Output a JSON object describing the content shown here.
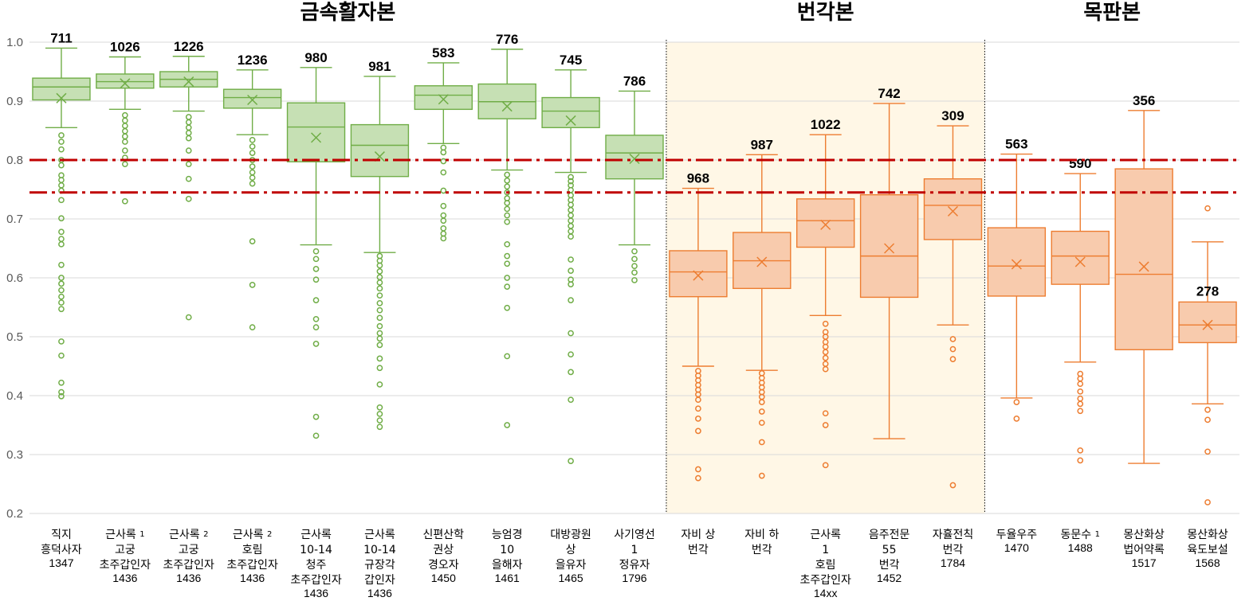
{
  "colors": {
    "green_fill": "#c6e0b4",
    "green_stroke": "#70ad47",
    "orange_fill": "#f8cbad",
    "orange_stroke": "#ed7d31",
    "highlight_bg": "#fff7e6",
    "threshold_line": "#c00000",
    "grid": "#d9d9d9",
    "red_label": "#ff0000"
  },
  "chart_data": {
    "type": "box",
    "ylim": [
      0.2,
      1.0
    ],
    "yticks": [
      "0.2",
      "0.3",
      "0.4",
      "0.5",
      "0.6",
      "0.7",
      "0.8",
      "0.9",
      "1.0"
    ],
    "grid": true,
    "thresholds": [
      0.8,
      0.745
    ],
    "groups": [
      {
        "title": "금속활자본",
        "start": 0,
        "end": 9,
        "highlight": false
      },
      {
        "title": "번각본",
        "start": 10,
        "end": 14,
        "highlight": true
      },
      {
        "title": "목판본",
        "start": 15,
        "end": 18,
        "highlight": false
      }
    ],
    "boxes": [
      {
        "lines": [
          "직지",
          "흥덕사자"
        ],
        "year": "1347",
        "count": "711",
        "color": "green",
        "q1": 0.902,
        "median": 0.924,
        "q3": 0.939,
        "mean": 0.905,
        "whisker_low": 0.855,
        "whisker_high": 0.99,
        "outliers": [
          0.842,
          0.831,
          0.818,
          0.8,
          0.791,
          0.774,
          0.766,
          0.757,
          0.748,
          0.732,
          0.701,
          0.678,
          0.666,
          0.657,
          0.622,
          0.6,
          0.59,
          0.579,
          0.568,
          0.558,
          0.547,
          0.492,
          0.468,
          0.422,
          0.406,
          0.399
        ]
      },
      {
        "lines": [
          "근사록¹",
          "고궁",
          "초주갑인자"
        ],
        "year": "1436",
        "count": "1026",
        "color": "green",
        "q1": 0.922,
        "median": 0.933,
        "q3": 0.946,
        "mean": 0.93,
        "whisker_low": 0.886,
        "whisker_high": 0.975,
        "outliers": [
          0.876,
          0.867,
          0.858,
          0.849,
          0.84,
          0.831,
          0.816,
          0.804,
          0.793,
          0.73
        ]
      },
      {
        "lines": [
          "근사록²",
          "고궁",
          "초주갑인자"
        ],
        "year": "1436",
        "count": "1226",
        "color": "green",
        "q1": 0.924,
        "median": 0.937,
        "q3": 0.95,
        "mean": 0.933,
        "whisker_low": 0.883,
        "whisker_high": 0.976,
        "outliers": [
          0.873,
          0.864,
          0.855,
          0.846,
          0.837,
          0.816,
          0.793,
          0.768,
          0.734,
          0.533
        ]
      },
      {
        "lines": [
          "근사록²",
          "호림",
          "초주갑인자"
        ],
        "year": "1436",
        "count": "1236",
        "color": "green",
        "q1": 0.888,
        "median": 0.906,
        "q3": 0.92,
        "mean": 0.902,
        "whisker_low": 0.843,
        "whisker_high": 0.953,
        "outliers": [
          0.834,
          0.823,
          0.812,
          0.8,
          0.789,
          0.779,
          0.77,
          0.76,
          0.662,
          0.588,
          0.516
        ]
      },
      {
        "lines": [
          "근사록",
          "10-14",
          "청주",
          "초주갑인자"
        ],
        "year": "1436",
        "count": "980",
        "color": "green",
        "q1": 0.797,
        "median": 0.856,
        "q3": 0.897,
        "mean": 0.838,
        "whisker_low": 0.656,
        "whisker_high": 0.957,
        "outliers": [
          0.645,
          0.632,
          0.615,
          0.597,
          0.562,
          0.53,
          0.516,
          0.488,
          0.364,
          0.332
        ]
      },
      {
        "lines": [
          "근사록",
          "10-14",
          "규장각",
          "갑인자"
        ],
        "year": "1436",
        "count": "981",
        "color": "green",
        "q1": 0.772,
        "median": 0.825,
        "q3": 0.86,
        "mean": 0.806,
        "whisker_low": 0.643,
        "whisker_high": 0.942,
        "outliers": [
          0.637,
          0.629,
          0.621,
          0.611,
          0.601,
          0.592,
          0.582,
          0.57,
          0.557,
          0.545,
          0.532,
          0.518,
          0.506,
          0.497,
          0.486,
          0.463,
          0.447,
          0.419,
          0.38,
          0.369,
          0.358,
          0.347
        ]
      },
      {
        "lines": [
          "신편산학",
          "권상",
          "경오자"
        ],
        "year": "1450",
        "count": "583",
        "color": "green",
        "q1": 0.886,
        "median": 0.91,
        "q3": 0.926,
        "mean": 0.903,
        "whisker_low": 0.828,
        "whisker_high": 0.965,
        "outliers": [
          0.821,
          0.813,
          0.798,
          0.779,
          0.748,
          0.722,
          0.706,
          0.697,
          0.684,
          0.675,
          0.667
        ]
      },
      {
        "lines": [
          "능엄경",
          "10",
          "을해자"
        ],
        "year": "1461",
        "count": "776",
        "color": "green",
        "q1": 0.87,
        "median": 0.899,
        "q3": 0.929,
        "mean": 0.891,
        "whisker_low": 0.783,
        "whisker_high": 0.988,
        "outliers": [
          0.775,
          0.765,
          0.755,
          0.745,
          0.735,
          0.727,
          0.717,
          0.706,
          0.695,
          0.657,
          0.637,
          0.624,
          0.6,
          0.585,
          0.549,
          0.467,
          0.35
        ]
      },
      {
        "lines": [
          "대방광원",
          "상",
          "을유자"
        ],
        "year": "1465",
        "count": "745",
        "color": "green",
        "q1": 0.855,
        "median": 0.883,
        "q3": 0.906,
        "mean": 0.867,
        "whisker_low": 0.779,
        "whisker_high": 0.953,
        "outliers": [
          0.771,
          0.764,
          0.757,
          0.749,
          0.74,
          0.732,
          0.724,
          0.715,
          0.706,
          0.697,
          0.688,
          0.679,
          0.67,
          0.631,
          0.612,
          0.597,
          0.589,
          0.562,
          0.506,
          0.47,
          0.44,
          0.393,
          0.289
        ]
      },
      {
        "lines": [
          "사기영선",
          "1",
          "정유자"
        ],
        "year": "1796",
        "count": "786",
        "color": "green",
        "q1": 0.768,
        "median": 0.812,
        "q3": 0.842,
        "mean": 0.802,
        "whisker_low": 0.656,
        "whisker_high": 0.917,
        "outliers": [
          0.645,
          0.632,
          0.62,
          0.609,
          0.596
        ]
      },
      {
        "lines": [
          "자비 상",
          "번각"
        ],
        "year": "",
        "count": "968",
        "color": "orange",
        "q1": 0.568,
        "median": 0.61,
        "q3": 0.646,
        "mean": 0.604,
        "whisker_low": 0.45,
        "whisker_high": 0.752,
        "outliers": [
          0.442,
          0.434,
          0.426,
          0.418,
          0.41,
          0.402,
          0.393,
          0.378,
          0.361,
          0.34,
          0.275,
          0.26
        ]
      },
      {
        "lines": [
          "자비 하",
          "번각"
        ],
        "year": "",
        "count": "987",
        "color": "orange",
        "q1": 0.582,
        "median": 0.629,
        "q3": 0.677,
        "mean": 0.627,
        "whisker_low": 0.443,
        "whisker_high": 0.809,
        "outliers": [
          0.438,
          0.43,
          0.422,
          0.414,
          0.406,
          0.398,
          0.389,
          0.373,
          0.354,
          0.321,
          0.264
        ]
      },
      {
        "lines": [
          "근사록",
          "1",
          "호림",
          "초주갑인자"
        ],
        "year": "14xx",
        "count": "1022",
        "color": "orange",
        "q1": 0.652,
        "median": 0.697,
        "q3": 0.734,
        "mean": 0.69,
        "whisker_low": 0.536,
        "whisker_high": 0.843,
        "outliers": [
          0.522,
          0.508,
          0.5,
          0.491,
          0.483,
          0.474,
          0.464,
          0.454,
          0.445,
          0.37,
          0.35,
          0.282
        ]
      },
      {
        "lines": [
          "음주전문",
          "55",
          "번각"
        ],
        "year": "1452",
        "count": "742",
        "color": "orange",
        "q1": 0.567,
        "median": 0.637,
        "q3": 0.741,
        "mean": 0.65,
        "whisker_low": 0.327,
        "whisker_high": 0.896,
        "outliers": []
      },
      {
        "lines": [
          "자휼전칙",
          "번각"
        ],
        "year": "1784",
        "count": "309",
        "color": "orange",
        "q1": 0.665,
        "median": 0.723,
        "q3": 0.768,
        "mean": 0.713,
        "whisker_low": 0.52,
        "whisker_high": 0.858,
        "outliers": [
          0.496,
          0.479,
          0.462,
          0.248
        ]
      },
      {
        "lines": [
          "두율우주"
        ],
        "year": "1470",
        "count": "563",
        "color": "orange",
        "q1": 0.569,
        "median": 0.62,
        "q3": 0.685,
        "mean": 0.623,
        "whisker_low": 0.396,
        "whisker_high": 0.81,
        "outliers": [
          0.389,
          0.361
        ]
      },
      {
        "lines": [
          "동문수¹"
        ],
        "year": "1488",
        "count": "590",
        "color": "orange",
        "q1": 0.589,
        "median": 0.637,
        "q3": 0.679,
        "mean": 0.627,
        "whisker_low": 0.457,
        "whisker_high": 0.777,
        "outliers": [
          0.437,
          0.429,
          0.42,
          0.407,
          0.395,
          0.386,
          0.374,
          0.307,
          0.29
        ]
      },
      {
        "lines": [
          "몽산화상",
          "법어약록"
        ],
        "year": "1517",
        "count": "356",
        "color": "orange",
        "q1": 0.478,
        "median": 0.606,
        "q3": 0.785,
        "mean": 0.619,
        "whisker_low": 0.285,
        "whisker_high": 0.884,
        "outliers": []
      },
      {
        "lines": [
          "몽산화상",
          "육도보설"
        ],
        "year": "1568",
        "count": "278",
        "count_color": "red",
        "color": "orange",
        "q1": 0.49,
        "median": 0.52,
        "q3": 0.559,
        "mean": 0.52,
        "whisker_low": 0.386,
        "whisker_high": 0.661,
        "outliers": [
          0.718,
          0.376,
          0.359,
          0.305,
          0.219
        ]
      }
    ]
  }
}
